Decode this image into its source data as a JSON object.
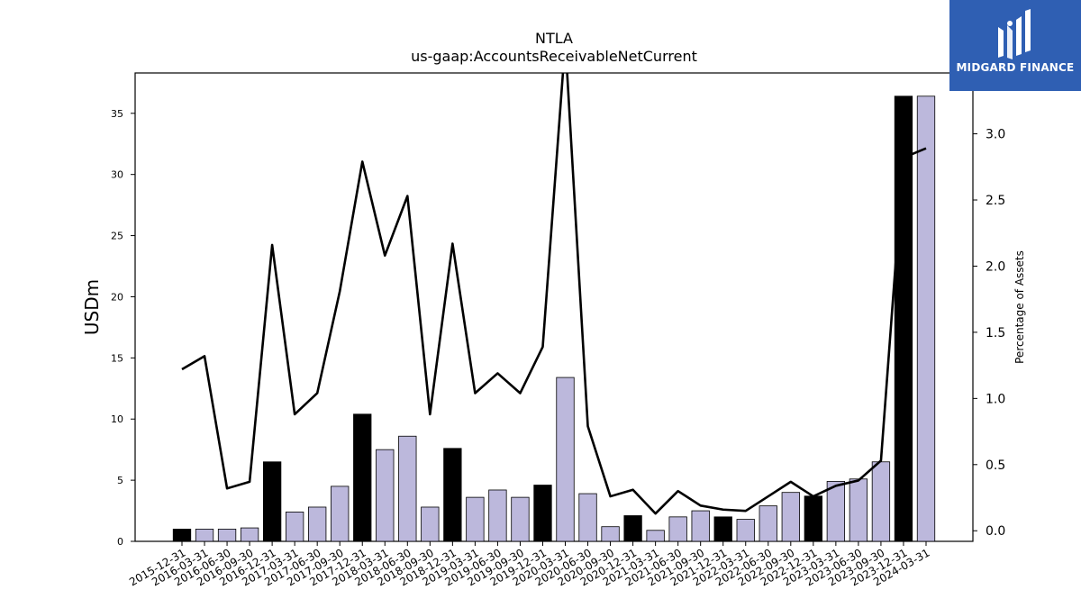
{
  "chart_data": {
    "type": "bar",
    "title": "NTLA",
    "subtitle": "us-gaap:AccountsReceivableNetCurrent",
    "ylabel": "USDm",
    "y2label": "Percentage of Assets",
    "ylim": [
      0,
      38.3
    ],
    "y2lim": [
      -0.08,
      3.46
    ],
    "yticks": [
      0,
      5,
      10,
      15,
      20,
      25,
      30,
      35
    ],
    "y2ticks": [
      0.0,
      0.5,
      1.0,
      1.5,
      2.0,
      2.5,
      3.0
    ],
    "grid": false,
    "categories": [
      "2015-12-31",
      "2016-03-31",
      "2016-06-30",
      "2016-09-30",
      "2016-12-31",
      "2017-03-31",
      "2017-06-30",
      "2017-09-30",
      "2017-12-31",
      "2018-03-31",
      "2018-06-30",
      "2018-09-30",
      "2018-12-31",
      "2019-03-31",
      "2019-06-30",
      "2019-09-30",
      "2019-12-31",
      "2020-03-31",
      "2020-06-30",
      "2020-09-30",
      "2020-12-31",
      "2021-03-31",
      "2021-06-30",
      "2021-09-30",
      "2021-12-31",
      "2022-03-31",
      "2022-06-30",
      "2022-09-30",
      "2022-12-31",
      "2023-03-31",
      "2023-06-30",
      "2023-09-30",
      "2023-12-31",
      "2024-03-31"
    ],
    "series": [
      {
        "kind": "bar",
        "values": [
          1.0,
          1.0,
          1.0,
          1.1,
          6.5,
          2.4,
          2.8,
          4.5,
          10.4,
          7.5,
          8.6,
          2.8,
          7.6,
          3.6,
          4.2,
          3.6,
          4.6,
          13.4,
          3.9,
          1.2,
          2.1,
          0.9,
          2.0,
          2.5,
          2.0,
          1.8,
          2.9,
          4.0,
          3.7,
          4.9,
          5.1,
          6.5,
          36.4,
          36.4
        ],
        "year_end_color": "#000000",
        "quarter_color": "#bcb8dc"
      },
      {
        "kind": "line",
        "axis": "right",
        "color": "#000000",
        "values": [
          1.22,
          1.32,
          0.32,
          0.37,
          2.16,
          0.88,
          1.04,
          1.81,
          2.79,
          2.08,
          2.53,
          0.88,
          2.17,
          1.04,
          1.19,
          1.04,
          1.39,
          3.7,
          0.79,
          0.26,
          0.31,
          0.13,
          0.3,
          0.19,
          0.16,
          0.15,
          0.26,
          0.37,
          0.26,
          0.34,
          0.38,
          0.53,
          2.82,
          2.89
        ]
      }
    ]
  },
  "logo": {
    "text": "MIDGARD FINANCE",
    "color": "#2f5fb3"
  }
}
